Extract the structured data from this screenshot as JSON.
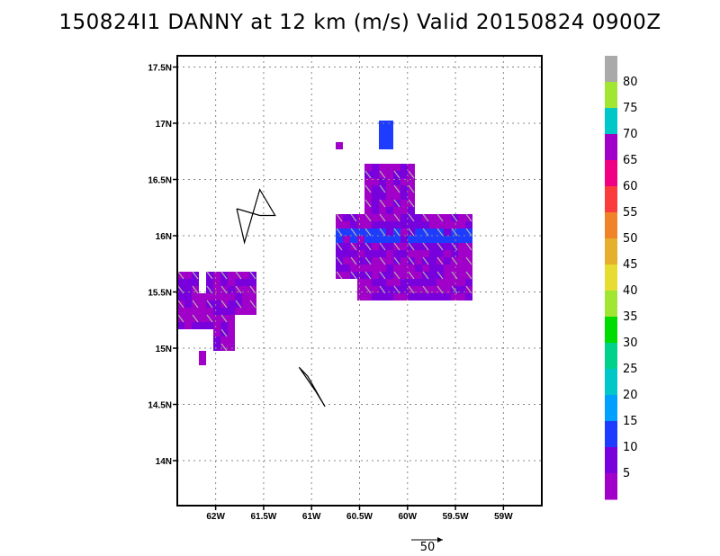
{
  "title": "150824I1 DANNY at 12 km (m/s) Valid 20150824 0900Z",
  "chart_data": {
    "type": "heatmap",
    "title": "150824I1 DANNY at 12 km (m/s) Valid 20150824 0900Z",
    "xlabel": "",
    "ylabel": "",
    "xlim": [
      -62.4,
      -58.6
    ],
    "ylim": [
      13.6,
      17.6
    ],
    "x_ticks": [
      -62.0,
      -61.5,
      -61.0,
      -60.5,
      -60.0,
      -59.5,
      -59.0
    ],
    "x_tick_labels": [
      "62W",
      "61.5W",
      "61W",
      "60.5W",
      "60W",
      "59.5W",
      "59W"
    ],
    "y_ticks": [
      14.0,
      14.5,
      15.0,
      15.5,
      16.0,
      16.5,
      17.0,
      17.5
    ],
    "y_tick_labels": [
      "14N",
      "14.5N",
      "15N",
      "15.5N",
      "16N",
      "16.5N",
      "17N",
      "17.5N"
    ],
    "grid": true,
    "colorbar": {
      "labels": [
        "5",
        "10",
        "15",
        "20",
        "25",
        "30",
        "35",
        "40",
        "45",
        "50",
        "55",
        "60",
        "65",
        "70",
        "75",
        "80"
      ],
      "colors": [
        "#a000c8",
        "#7800dc",
        "#1e3cff",
        "#00a0ff",
        "#00c8c8",
        "#00d28c",
        "#00dc00",
        "#a0e632",
        "#e6dc32",
        "#e6af2d",
        "#f08228",
        "#fa3c3c",
        "#f00082",
        "#a000c8",
        "#00c8c8",
        "#a0e632",
        "#aaaaaa"
      ]
    },
    "vector_reference": {
      "label": "50",
      "value": 50,
      "units": "m/s"
    },
    "wind_regions": [
      {
        "name": "east-cluster",
        "lon_range": [
          -60.75,
          -59.3
        ],
        "lat_range": [
          15.45,
          16.65
        ],
        "speed_class": "5",
        "note": "ring of 10-15 m/s near 16N"
      },
      {
        "name": "west-cluster",
        "lon_range": [
          -62.4,
          -61.6
        ],
        "lat_range": [
          14.9,
          15.65
        ],
        "speed_class": "5"
      },
      {
        "name": "north-patch",
        "lon_range": [
          -60.3,
          -60.15
        ],
        "lat_range": [
          16.8,
          17.05
        ],
        "speed_class": "10"
      }
    ],
    "coastlines": [
      {
        "name": "guadeloupe",
        "lon": [
          -61.78,
          -61.54,
          -61.38,
          -61.54,
          -61.7,
          -61.78
        ],
        "lat": [
          16.24,
          16.18,
          16.18,
          16.41,
          15.94,
          16.24
        ]
      },
      {
        "name": "dominica",
        "lon": [
          -61.13,
          -61.04,
          -60.86,
          -60.96,
          -61.13
        ],
        "lat": [
          14.83,
          14.75,
          14.48,
          14.62,
          14.83
        ]
      }
    ]
  }
}
